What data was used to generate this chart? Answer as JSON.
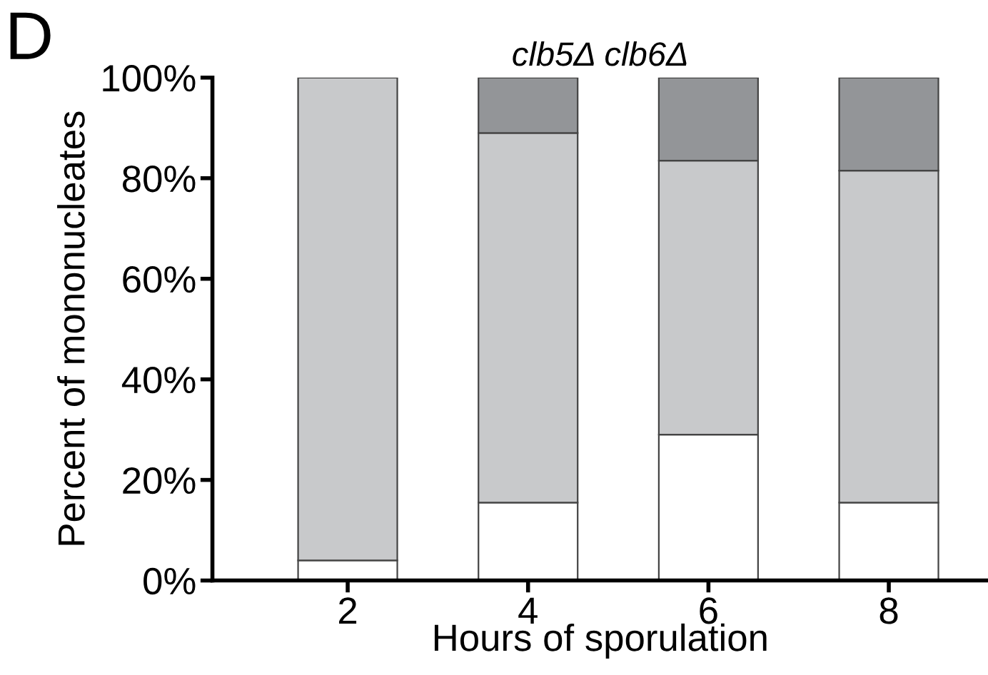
{
  "chart_data": {
    "type": "bar",
    "stacked": true,
    "title": "clb5Δ clb6Δ",
    "xlabel": "Hours of sporulation",
    "ylabel": "Percent of mononucleates",
    "categories": [
      "2",
      "4",
      "6",
      "8"
    ],
    "series": [
      {
        "color": "#ffffff",
        "values": [
          4,
          15.5,
          29,
          15.5
        ]
      },
      {
        "color": "#c8c9cb",
        "values": [
          96,
          73.5,
          54.5,
          66
        ]
      },
      {
        "color": "#939598",
        "values": [
          null,
          11,
          16.5,
          18.5
        ]
      }
    ],
    "ylim": [
      0,
      100
    ],
    "yticks": [
      {
        "value": 0,
        "label": "0%"
      },
      {
        "value": 20,
        "label": "20%"
      },
      {
        "value": 40,
        "label": "40%"
      },
      {
        "value": 60,
        "label": "60%"
      },
      {
        "value": 80,
        "label": "80%"
      },
      {
        "value": 100,
        "label": "100%"
      }
    ],
    "grid": false,
    "annotations": [
      "D"
    ]
  }
}
